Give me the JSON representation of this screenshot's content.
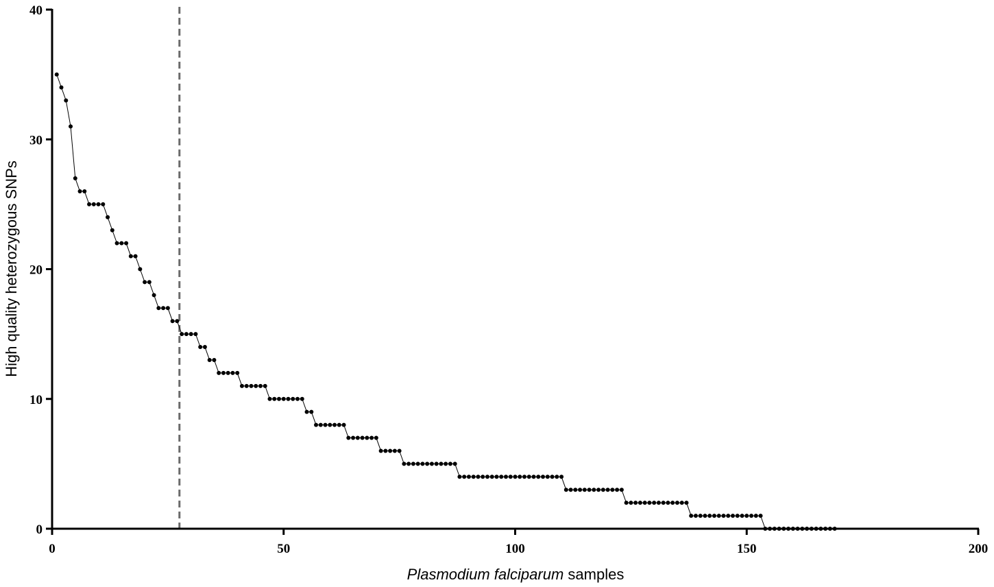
{
  "chart_data": {
    "type": "scatter",
    "title": "",
    "xlabel_italic": "Plasmodium falciparum",
    "xlabel_rest": " samples",
    "ylabel": "High quality heterozygous SNPs",
    "xlim": [
      0,
      200
    ],
    "ylim": [
      0,
      40
    ],
    "xticks": [
      0,
      50,
      100,
      150,
      200
    ],
    "yticks": [
      0,
      10,
      20,
      30,
      40
    ],
    "grid": false,
    "reference_line_x": 27.5,
    "marker_color": "#000000",
    "reference_line_color": "#6b6b6b",
    "series": [
      {
        "values": [
          35,
          34,
          33,
          31,
          27,
          26,
          26,
          25,
          25,
          25,
          25,
          24,
          23,
          22,
          22,
          22,
          21,
          21,
          20,
          19,
          19,
          18,
          17,
          17,
          17,
          16,
          16,
          15,
          15,
          15,
          15,
          14,
          14,
          13,
          13,
          12,
          12,
          12,
          12,
          12,
          11,
          11,
          11,
          11,
          11,
          11,
          10,
          10,
          10,
          10,
          10,
          10,
          10,
          10,
          9,
          9,
          8,
          8,
          8,
          8,
          8,
          8,
          8,
          7,
          7,
          7,
          7,
          7,
          7,
          7,
          6,
          6,
          6,
          6,
          6,
          5,
          5,
          5,
          5,
          5,
          5,
          5,
          5,
          5,
          5,
          5,
          5,
          4,
          4,
          4,
          4,
          4,
          4,
          4,
          4,
          4,
          4,
          4,
          4,
          4,
          4,
          4,
          4,
          4,
          4,
          4,
          4,
          4,
          4,
          4,
          3,
          3,
          3,
          3,
          3,
          3,
          3,
          3,
          3,
          3,
          3,
          3,
          3,
          2,
          2,
          2,
          2,
          2,
          2,
          2,
          2,
          2,
          2,
          2,
          2,
          2,
          2,
          1,
          1,
          1,
          1,
          1,
          1,
          1,
          1,
          1,
          1,
          1,
          1,
          1,
          1,
          1,
          1,
          0,
          0,
          0,
          0,
          0,
          0,
          0,
          0,
          0,
          0,
          0,
          0,
          0,
          0,
          0,
          0
        ]
      }
    ]
  }
}
